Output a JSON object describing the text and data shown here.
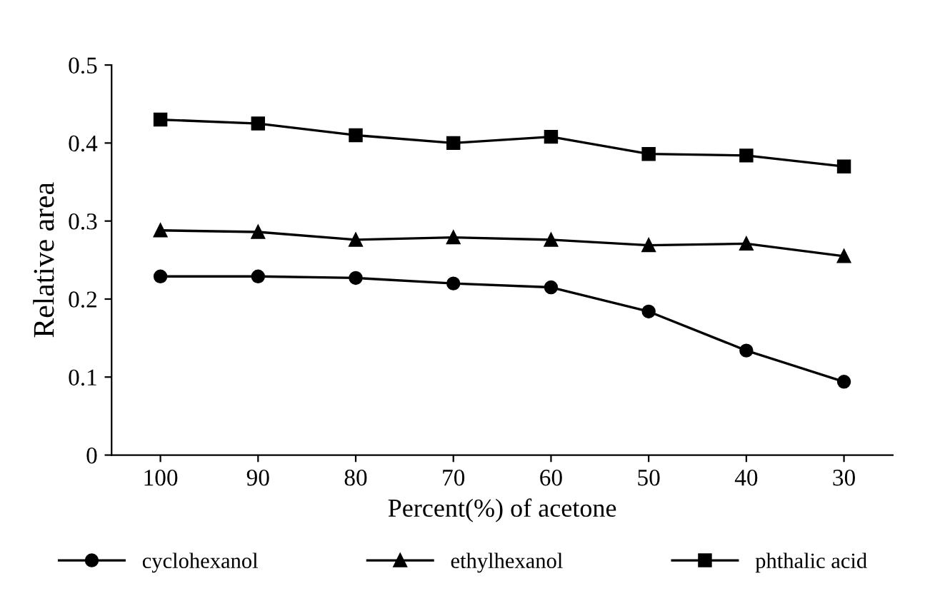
{
  "chart_data": {
    "type": "line",
    "xlabel": "Percent(%) of acetone",
    "ylabel": "Relative area",
    "categories": [
      "100",
      "90",
      "80",
      "70",
      "60",
      "50",
      "40",
      "30"
    ],
    "ylim": [
      0,
      0.5
    ],
    "yticks": [
      0,
      0.1,
      0.2,
      0.3,
      0.4,
      0.5
    ],
    "grid": false,
    "legend": "bottom",
    "series": [
      {
        "name": "cyclohexanol",
        "color": "#000000",
        "marker": "circle",
        "values": [
          0.229,
          0.229,
          0.227,
          0.22,
          0.215,
          0.184,
          0.134,
          0.094
        ]
      },
      {
        "name": "ethylhexanol",
        "color": "#000000",
        "marker": "triangle",
        "values": [
          0.288,
          0.286,
          0.276,
          0.279,
          0.276,
          0.269,
          0.271,
          0.255
        ]
      },
      {
        "name": "phthalic acid",
        "color": "#000000",
        "marker": "square",
        "values": [
          0.43,
          0.425,
          0.41,
          0.4,
          0.408,
          0.386,
          0.384,
          0.37
        ]
      }
    ]
  }
}
